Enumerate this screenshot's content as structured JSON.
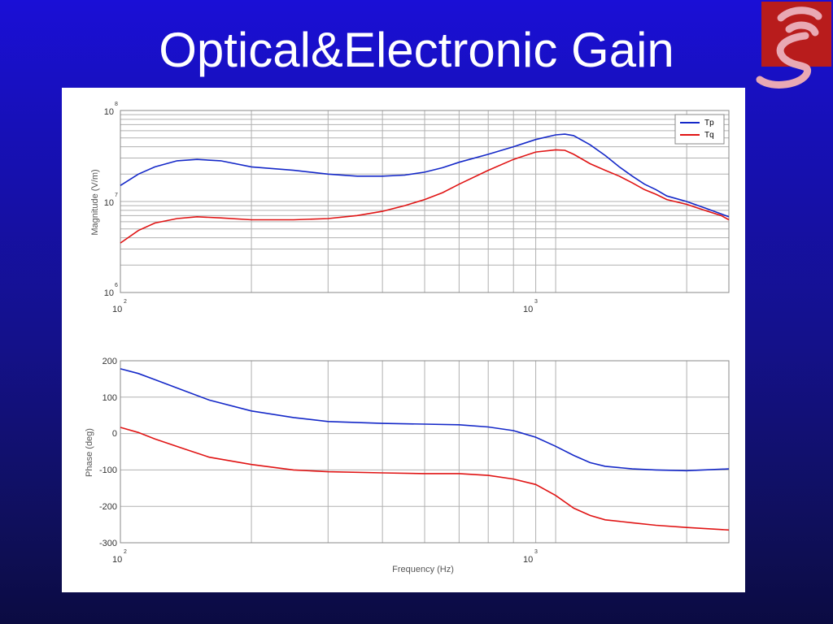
{
  "slide": {
    "title": "Optical&Electronic Gain"
  },
  "logo": {
    "icon": "xi-letter-logo-icon",
    "background": "#b81c1c",
    "glyph_color": "#e9a9b4"
  },
  "colors": {
    "Tp": "#1428c8",
    "Tq": "#e01414"
  },
  "chart_data": [
    {
      "type": "line",
      "title": "",
      "xlabel": "",
      "ylabel": "Magnitude (V/m)",
      "x_scale": "log",
      "y_scale": "log",
      "xlim": [
        100,
        2500
      ],
      "ylim": [
        1000000,
        100000000
      ],
      "grid": true,
      "legend": "top-right",
      "x_ticks": [
        {
          "base": "10",
          "exp": "2",
          "value": 100
        },
        {
          "base": "10",
          "exp": "3",
          "value": 1000
        }
      ],
      "y_ticks": [
        {
          "base": "10",
          "exp": "8",
          "value": 100000000
        },
        {
          "base": "10",
          "exp": "7",
          "value": 10000000
        },
        {
          "base": "10",
          "exp": "6",
          "value": 1000000
        }
      ],
      "series": [
        {
          "name": "Tp",
          "x": [
            100,
            110,
            120,
            135,
            150,
            170,
            200,
            250,
            300,
            350,
            400,
            450,
            500,
            550,
            600,
            700,
            800,
            900,
            1000,
            1050,
            1100,
            1200,
            1300,
            1400,
            1500,
            1600,
            1700,
            1800,
            2000,
            2200,
            2400,
            2500
          ],
          "y": [
            15000000,
            20000000,
            24000000,
            28000000,
            29000000,
            28000000,
            24000000,
            22000000,
            20000000,
            19000000,
            19000000,
            19500000,
            21000000,
            23500000,
            27000000,
            33000000,
            40000000,
            48000000,
            54000000,
            55000000,
            53000000,
            42000000,
            32000000,
            24000000,
            19000000,
            15500000,
            13500000,
            11500000,
            10000000,
            8500000,
            7300000,
            6800000
          ]
        },
        {
          "name": "Tq",
          "x": [
            100,
            110,
            120,
            135,
            150,
            170,
            200,
            250,
            300,
            350,
            400,
            450,
            500,
            550,
            600,
            700,
            800,
            900,
            1000,
            1050,
            1100,
            1200,
            1300,
            1400,
            1500,
            1600,
            1700,
            1800,
            2000,
            2200,
            2400,
            2500
          ],
          "y": [
            3500000,
            4800000,
            5800000,
            6500000,
            6800000,
            6600000,
            6300000,
            6300000,
            6500000,
            7000000,
            7800000,
            9000000,
            10500000,
            12500000,
            15500000,
            22000000,
            29000000,
            35000000,
            37000000,
            36500000,
            33000000,
            26000000,
            22000000,
            19000000,
            16000000,
            13500000,
            12000000,
            10500000,
            9300000,
            8000000,
            7000000,
            6300000
          ]
        }
      ]
    },
    {
      "type": "line",
      "title": "",
      "xlabel": "Frequency (Hz)",
      "ylabel": "Phase (deg)",
      "x_scale": "log",
      "xlim": [
        100,
        2500
      ],
      "ylim": [
        -300,
        200
      ],
      "grid": true,
      "x_ticks": [
        {
          "base": "10",
          "exp": "2",
          "value": 100
        },
        {
          "base": "10",
          "exp": "3",
          "value": 1000
        }
      ],
      "y_ticks": [
        "200",
        "100",
        "0",
        "-100",
        "-200",
        "-300"
      ],
      "series": [
        {
          "name": "Tp",
          "x": [
            100,
            110,
            120,
            140,
            160,
            200,
            250,
            300,
            400,
            500,
            600,
            700,
            800,
            900,
            1000,
            1100,
            1200,
            1300,
            1500,
            1700,
            2000,
            2500
          ],
          "y": [
            178,
            165,
            148,
            118,
            92,
            62,
            44,
            33,
            28,
            26,
            24,
            18,
            8,
            -10,
            -35,
            -60,
            -80,
            -90,
            -97,
            -100,
            -102,
            -97
          ]
        },
        {
          "name": "Tq",
          "x": [
            100,
            110,
            120,
            140,
            160,
            200,
            250,
            300,
            400,
            500,
            600,
            700,
            800,
            900,
            1000,
            1100,
            1200,
            1300,
            1500,
            1700,
            2000,
            2500
          ],
          "y": [
            17,
            3,
            -15,
            -42,
            -65,
            -85,
            -100,
            -105,
            -108,
            -110,
            -110,
            -115,
            -125,
            -140,
            -170,
            -205,
            -225,
            -237,
            -245,
            -252,
            -258,
            -265
          ]
        }
      ]
    }
  ]
}
